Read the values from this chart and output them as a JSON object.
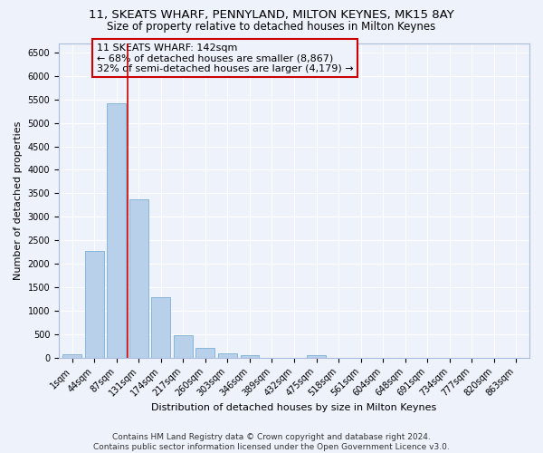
{
  "title1": "11, SKEATS WHARF, PENNYLAND, MILTON KEYNES, MK15 8AY",
  "title2": "Size of property relative to detached houses in Milton Keynes",
  "xlabel": "Distribution of detached houses by size in Milton Keynes",
  "ylabel": "Number of detached properties",
  "categories": [
    "1sqm",
    "44sqm",
    "87sqm",
    "131sqm",
    "174sqm",
    "217sqm",
    "260sqm",
    "303sqm",
    "346sqm",
    "389sqm",
    "432sqm",
    "475sqm",
    "518sqm",
    "561sqm",
    "604sqm",
    "648sqm",
    "691sqm",
    "734sqm",
    "777sqm",
    "820sqm",
    "863sqm"
  ],
  "values": [
    65,
    2270,
    5420,
    3380,
    1290,
    470,
    210,
    95,
    55,
    0,
    0,
    55,
    0,
    0,
    0,
    0,
    0,
    0,
    0,
    0,
    0
  ],
  "bar_color": "#b8d0ea",
  "bar_edge_color": "#7aafd4",
  "vline_x": 2.5,
  "vline_color": "#cc0000",
  "annotation_text": "11 SKEATS WHARF: 142sqm\n← 68% of detached houses are smaller (8,867)\n32% of semi-detached houses are larger (4,179) →",
  "annotation_box_color": "#cc0000",
  "ylim": [
    0,
    6700
  ],
  "yticks": [
    0,
    500,
    1000,
    1500,
    2000,
    2500,
    3000,
    3500,
    4000,
    4500,
    5000,
    5500,
    6000,
    6500
  ],
  "footer1": "Contains HM Land Registry data © Crown copyright and database right 2024.",
  "footer2": "Contains public sector information licensed under the Open Government Licence v3.0.",
  "bg_color": "#eef2fb",
  "grid_color": "#ffffff",
  "title1_fontsize": 9.5,
  "title2_fontsize": 8.5,
  "tick_fontsize": 7,
  "xlabel_fontsize": 8,
  "ylabel_fontsize": 8,
  "footer_fontsize": 6.5,
  "annotation_fontsize": 8
}
